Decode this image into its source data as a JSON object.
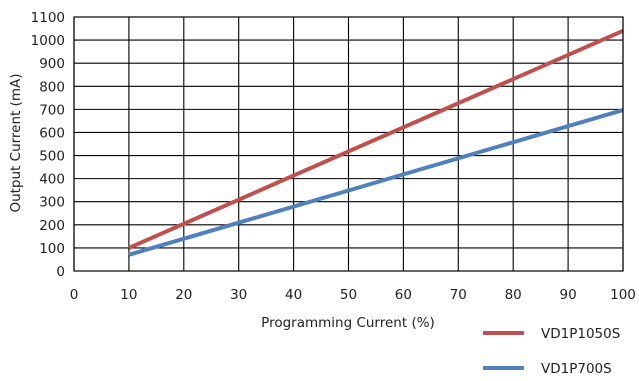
{
  "chart_data": {
    "type": "line",
    "xlabel": "Programming Current (%)",
    "ylabel": "Output Current (mA)",
    "xlim": [
      0,
      100
    ],
    "ylim": [
      0,
      1100
    ],
    "x_ticks": [
      0,
      10,
      20,
      30,
      40,
      50,
      60,
      70,
      80,
      90,
      100
    ],
    "y_ticks": [
      0,
      100,
      200,
      300,
      400,
      500,
      600,
      700,
      800,
      900,
      1000,
      1100
    ],
    "grid": true,
    "legend_position": "bottom-right",
    "series": [
      {
        "name": "VD1P1050S",
        "color": "#c0504d",
        "x": [
          10,
          100
        ],
        "y": [
          100,
          1040
        ]
      },
      {
        "name": "VD1P700S",
        "color": "#4f81bd",
        "x": [
          10,
          100
        ],
        "y": [
          70,
          697
        ]
      }
    ]
  }
}
